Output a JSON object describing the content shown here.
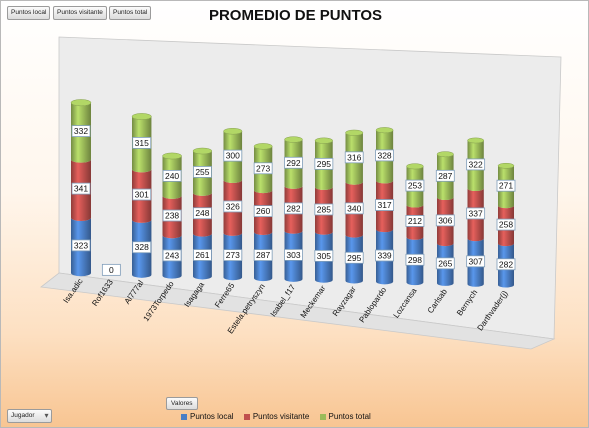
{
  "field_buttons": [
    "Puntos local",
    "Puntos visitante",
    "Puntos total"
  ],
  "title": "PROMEDIO DE PUNTOS",
  "colors": {
    "local": "#4a7ec5",
    "visitante": "#c0504d",
    "total": "#9bbb59",
    "wall": "#ececec"
  },
  "chart_data": {
    "type": "bar",
    "stacked": true,
    "three_d": true,
    "title": "PROMEDIO DE PUNTOS",
    "categories": [
      "Isa.adic",
      "Rof1633",
      "Al777al",
      "1973Torpedo",
      "Isagaga",
      "Ferre65",
      "Estela.petryszyn",
      "Isabel_f17",
      "Meckemar",
      "Rayzagar",
      "Pablopardo",
      "Lozcansa",
      "Carlsab",
      "Bernych",
      "Darthvader(j)"
    ],
    "series": [
      {
        "name": "Puntos local",
        "values": [
          323,
          0,
          328,
          243,
          261,
          273,
          287,
          303,
          305,
          295,
          339,
          298,
          265,
          307,
          282
        ]
      },
      {
        "name": "Puntos visitante",
        "values": [
          341,
          null,
          301,
          238,
          248,
          326,
          260,
          282,
          285,
          340,
          317,
          212,
          306,
          337,
          258
        ]
      },
      {
        "name": "Puntos total",
        "values": [
          332,
          null,
          315,
          240,
          255,
          300,
          273,
          292,
          295,
          316,
          328,
          253,
          287,
          322,
          271
        ]
      }
    ],
    "legend_position": "bottom"
  },
  "filters": {
    "row_field": "Jugador",
    "values_field": "Valores"
  }
}
